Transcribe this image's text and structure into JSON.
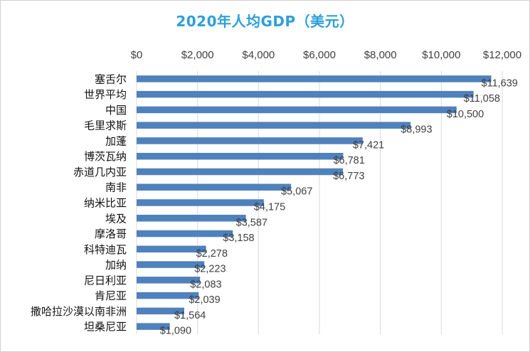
{
  "chart_data": {
    "type": "bar",
    "orientation": "horizontal",
    "title": "2020年人均GDP（美元）",
    "xlabel": "",
    "ylabel": "",
    "xlim": [
      0,
      12000
    ],
    "x_ticks": [
      0,
      2000,
      4000,
      6000,
      8000,
      10000,
      12000
    ],
    "tick_labels": [
      "$0",
      "$2,000",
      "$4,000",
      "$6,000",
      "$8,000",
      "$10,000",
      "$12,000"
    ],
    "axis_position": "top",
    "grid": true,
    "legend": "none",
    "bar_color": "#4f81bd",
    "categories": [
      "塞舌尔",
      "世界平均",
      "中国",
      "毛里求斯",
      "加蓬",
      "博茨瓦纳",
      "赤道几内亚",
      "南非",
      "纳米比亚",
      "埃及",
      "摩洛哥",
      "科特迪瓦",
      "加纳",
      "尼日利亚",
      "肯尼亚",
      "撒哈拉沙漠以南非洲",
      "坦桑尼亚"
    ],
    "values": [
      11639,
      11058,
      10500,
      8993,
      7421,
      6781,
      6773,
      5067,
      4175,
      3587,
      3158,
      2278,
      2223,
      2083,
      2039,
      1564,
      1090
    ],
    "data_labels": [
      "$11,639",
      "$11,058",
      "$10,500",
      "$8,993",
      "$7,421",
      "$6,781",
      "$6,773",
      "$5,067",
      "$4,175",
      "$3,587",
      "$3,158",
      "$2,278",
      "$2,223",
      "$2,083",
      "$2,039",
      "$1,564",
      "$1,090"
    ]
  }
}
